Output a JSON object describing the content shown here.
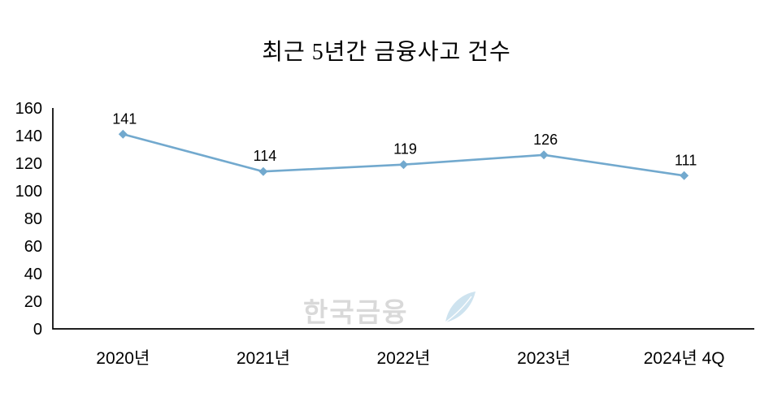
{
  "page": {
    "background": "#ffffff"
  },
  "chart_data": {
    "type": "line",
    "title": "최근 5년간 금융사고 건수",
    "categories": [
      "2020년",
      "2021년",
      "2022년",
      "2023년",
      "2024년 4Q"
    ],
    "series": [
      {
        "name": "금융사고 건수",
        "values": [
          141,
          114,
          119,
          126,
          111
        ]
      }
    ],
    "data_labels": [
      "141",
      "114",
      "119",
      "126",
      "111"
    ],
    "xlabel": "",
    "ylabel": "",
    "ylim": [
      0,
      160
    ],
    "yticks": [
      0,
      20,
      40,
      60,
      80,
      100,
      120,
      140,
      160
    ],
    "grid": false,
    "legend": "none",
    "marker": "diamond",
    "line_color": "#72A9CE",
    "marker_color": "#72A9CE",
    "axis_color": "#000000",
    "label_color": "#000000"
  },
  "watermark": {
    "text": "한국금융",
    "color": "#D9D9D9",
    "feather_color": "#C9E0ED"
  }
}
